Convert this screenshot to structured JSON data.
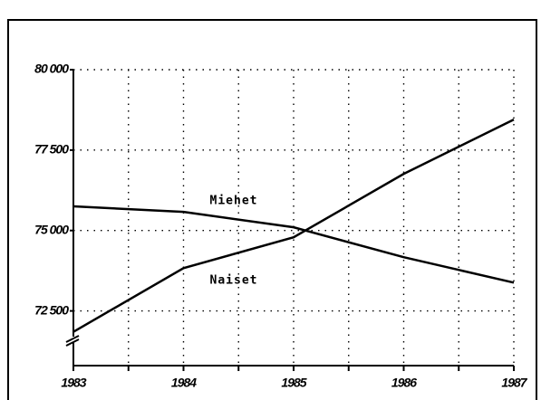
{
  "chart_data": {
    "type": "line",
    "x": [
      1983,
      1984,
      1985,
      1986,
      1987
    ],
    "series": [
      {
        "name": "Miehet",
        "color": "#000000",
        "values": [
          75750,
          75580,
          75100,
          74170,
          73380
        ]
      },
      {
        "name": "Naiset",
        "color": "#000000",
        "values": [
          71850,
          73830,
          74790,
          76760,
          78450
        ]
      }
    ],
    "xlim": [
      1983,
      1987
    ],
    "xticks": [
      1983,
      1984,
      1985,
      1986,
      1987
    ],
    "minor_xticks": [
      1983.5,
      1984.5,
      1985.5,
      1986.5
    ],
    "ylim": [
      70800,
      80000
    ],
    "yticks": [
      {
        "value": 72500,
        "label": "72 500"
      },
      {
        "value": 75000,
        "label": "75 000"
      },
      {
        "value": 77500,
        "label": "77 500"
      },
      {
        "value": 80000,
        "label": "80 000"
      }
    ],
    "grid": true,
    "axis_break": true
  }
}
